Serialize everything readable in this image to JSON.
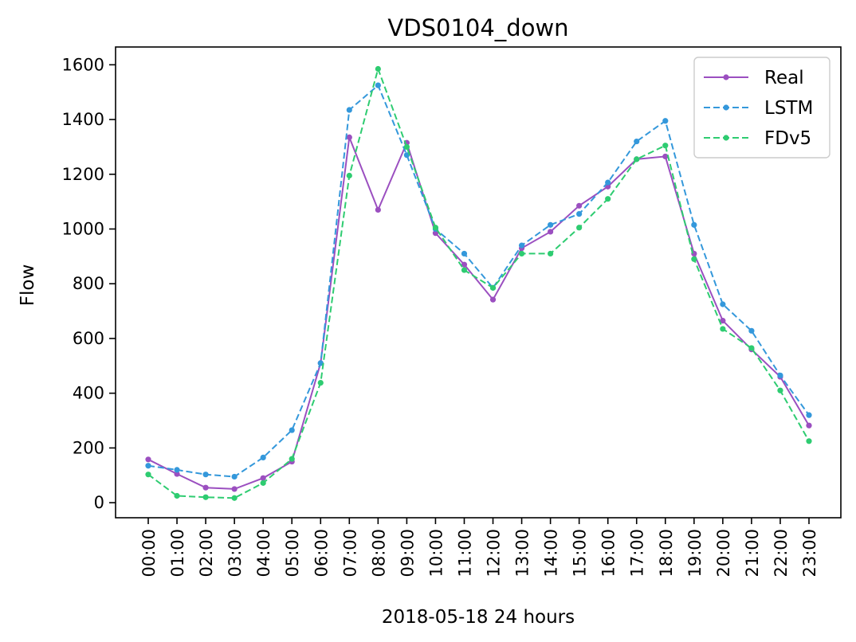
{
  "chart_data": {
    "type": "line",
    "title": "VDS0104_down",
    "xlabel": "2018-05-18 24 hours",
    "ylabel": "Flow",
    "categories": [
      "00:00",
      "01:00",
      "02:00",
      "03:00",
      "04:00",
      "05:00",
      "06:00",
      "07:00",
      "08:00",
      "09:00",
      "10:00",
      "11:00",
      "12:00",
      "13:00",
      "14:00",
      "15:00",
      "16:00",
      "17:00",
      "18:00",
      "19:00",
      "20:00",
      "21:00",
      "22:00",
      "23:00"
    ],
    "yticks": [
      0,
      200,
      400,
      600,
      800,
      1000,
      1200,
      1400,
      1600
    ],
    "ylim": [
      -55,
      1665
    ],
    "grid": false,
    "legend_position": "top-right",
    "series": [
      {
        "name": "Real",
        "color": "#9b4fc0",
        "style": "solid",
        "values": [
          158,
          105,
          55,
          50,
          90,
          150,
          510,
          1335,
          1070,
          1315,
          985,
          870,
          742,
          930,
          990,
          1085,
          1155,
          1255,
          1265,
          910,
          665,
          560,
          460,
          282
        ]
      },
      {
        "name": "LSTM",
        "color": "#3498db",
        "style": "dashed",
        "values": [
          135,
          120,
          103,
          95,
          165,
          265,
          510,
          1435,
          1525,
          1270,
          1000,
          910,
          785,
          940,
          1015,
          1055,
          1170,
          1320,
          1395,
          1015,
          725,
          628,
          465,
          320
        ]
      },
      {
        "name": "FDv5",
        "color": "#2ecc71",
        "style": "dashed",
        "values": [
          103,
          25,
          20,
          17,
          72,
          160,
          438,
          1195,
          1585,
          1300,
          1005,
          850,
          785,
          910,
          910,
          1005,
          1110,
          1255,
          1305,
          890,
          635,
          565,
          410,
          225
        ]
      }
    ]
  }
}
